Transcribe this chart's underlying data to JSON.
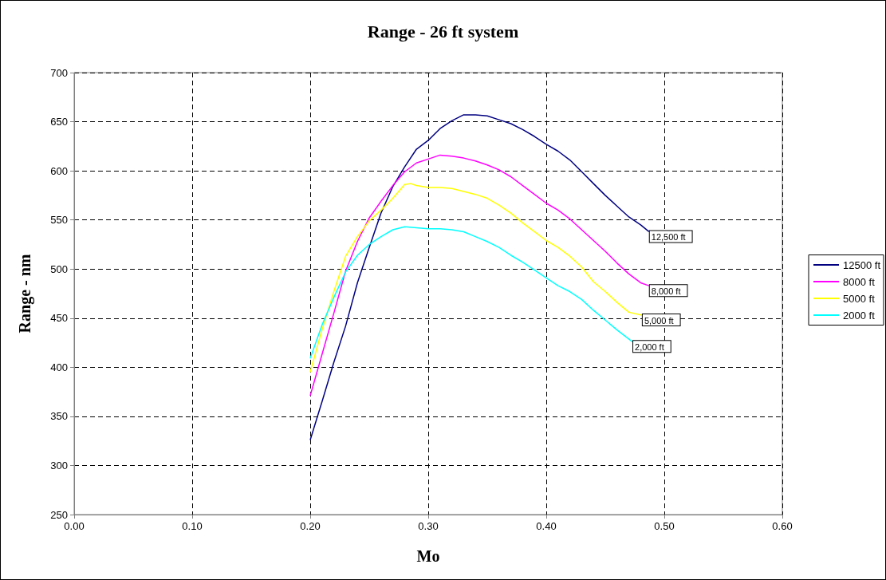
{
  "chart_data": {
    "type": "line",
    "title": "Range - 26 ft system",
    "xlabel": "Mo",
    "ylabel": "Range - nm",
    "xlim": [
      0,
      0.6
    ],
    "xticks": [
      {
        "value": 0,
        "label": "0.00"
      },
      {
        "value": 0.1,
        "label": "0.10"
      },
      {
        "value": 0.2,
        "label": "0.20"
      },
      {
        "value": 0.3,
        "label": "0.30"
      },
      {
        "value": 0.4,
        "label": "0.40"
      },
      {
        "value": 0.5,
        "label": "0.50"
      },
      {
        "value": 0.6,
        "label": "0.60"
      }
    ],
    "ylim": [
      250,
      700
    ],
    "yticks": [
      250,
      300,
      350,
      400,
      450,
      500,
      550,
      600,
      650,
      700
    ],
    "grid": true,
    "legend": "right",
    "marker": "none",
    "line_style": "solid",
    "series": [
      {
        "name": "12500 ft",
        "color": "#000080",
        "x": [
          0.2,
          0.21,
          0.22,
          0.23,
          0.24,
          0.25,
          0.26,
          0.27,
          0.28,
          0.29,
          0.3,
          0.31,
          0.32,
          0.33,
          0.34,
          0.35,
          0.36,
          0.37,
          0.38,
          0.39,
          0.4,
          0.41,
          0.42,
          0.43,
          0.44,
          0.45,
          0.46,
          0.47,
          0.48,
          0.487
        ],
        "values": [
          326,
          365,
          405,
          442,
          486,
          522,
          557,
          584,
          604,
          622,
          631,
          643,
          651,
          657,
          657,
          656,
          652,
          648,
          642,
          635,
          627,
          620,
          611,
          599,
          587,
          575,
          564,
          553,
          545,
          538
        ]
      },
      {
        "name": "8000 ft",
        "color": "#ff00ff",
        "x": [
          0.2,
          0.21,
          0.22,
          0.23,
          0.24,
          0.25,
          0.26,
          0.27,
          0.28,
          0.29,
          0.3,
          0.31,
          0.32,
          0.33,
          0.34,
          0.35,
          0.36,
          0.37,
          0.38,
          0.39,
          0.4,
          0.41,
          0.42,
          0.43,
          0.44,
          0.45,
          0.46,
          0.47,
          0.48,
          0.487
        ],
        "values": [
          371,
          413,
          455,
          498,
          528,
          552,
          569,
          585,
          599,
          608,
          612,
          616,
          615,
          613,
          610,
          606,
          601,
          594,
          585,
          576,
          567,
          560,
          551,
          540,
          529,
          518,
          506,
          495,
          486,
          483
        ]
      },
      {
        "name": "5000 ft",
        "color": "#ffff00",
        "x": [
          0.2,
          0.21,
          0.22,
          0.23,
          0.24,
          0.25,
          0.26,
          0.27,
          0.28,
          0.285,
          0.29,
          0.3,
          0.31,
          0.32,
          0.33,
          0.34,
          0.35,
          0.36,
          0.37,
          0.38,
          0.39,
          0.4,
          0.41,
          0.42,
          0.43,
          0.44,
          0.45,
          0.46,
          0.47,
          0.481
        ],
        "values": [
          395,
          438,
          477,
          513,
          533,
          549,
          560,
          572,
          586,
          587,
          585,
          583,
          583,
          582,
          579,
          576,
          572,
          565,
          557,
          547,
          538,
          529,
          522,
          513,
          502,
          487,
          477,
          466,
          456,
          453
        ]
      },
      {
        "name": "2000 ft",
        "color": "#00ffff",
        "x": [
          0.2,
          0.21,
          0.22,
          0.23,
          0.24,
          0.25,
          0.26,
          0.27,
          0.28,
          0.29,
          0.3,
          0.31,
          0.32,
          0.33,
          0.34,
          0.35,
          0.36,
          0.37,
          0.38,
          0.39,
          0.4,
          0.41,
          0.42,
          0.43,
          0.44,
          0.45,
          0.46,
          0.473
        ],
        "values": [
          409,
          443,
          471,
          497,
          514,
          525,
          533,
          540,
          543,
          542,
          541,
          541,
          540,
          538,
          533,
          528,
          522,
          514,
          507,
          499,
          491,
          483,
          477,
          469,
          458,
          448,
          438,
          426
        ]
      }
    ],
    "annotations": [
      {
        "text": "12,500 ft",
        "x": 0.487,
        "y": 538
      },
      {
        "text": "8,000 ft",
        "x": 0.487,
        "y": 483
      },
      {
        "text": "5,000 ft",
        "x": 0.481,
        "y": 453
      },
      {
        "text": "2,000 ft",
        "x": 0.473,
        "y": 426
      }
    ]
  }
}
